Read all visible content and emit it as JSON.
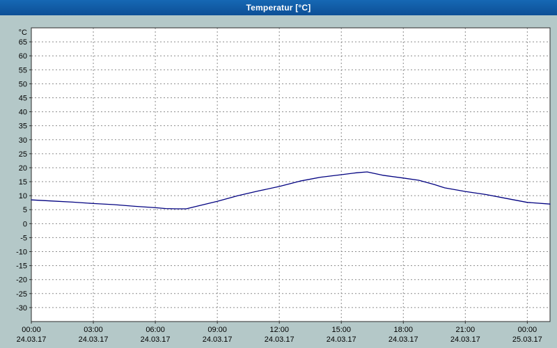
{
  "window": {
    "title": "Temperatur [°C]"
  },
  "colors": {
    "titlebar": "#0e5aa7",
    "titlebar_text": "#ffffff",
    "window_background": "#b4c8c8",
    "plot_background": "#ffffff",
    "grid": "#8a8a8a",
    "axis_border": "#2b2b2b",
    "line": "#000080",
    "text": "#000000"
  },
  "chart_data": {
    "type": "line",
    "title": "Temperatur [°C]",
    "ylabel": "°C",
    "ylim": [
      -35,
      70
    ],
    "xlim_hours": [
      0,
      25.1
    ],
    "grid": true,
    "legend": "none",
    "y_ticks": [
      65,
      60,
      55,
      50,
      45,
      40,
      35,
      30,
      25,
      20,
      15,
      10,
      5,
      0,
      -5,
      -10,
      -15,
      -20,
      -25,
      -30
    ],
    "x_ticks": [
      {
        "hour": 0,
        "time": "00:00",
        "date": "24.03.17"
      },
      {
        "hour": 3,
        "time": "03:00",
        "date": "24.03.17"
      },
      {
        "hour": 6,
        "time": "06:00",
        "date": "24.03.17"
      },
      {
        "hour": 9,
        "time": "09:00",
        "date": "24.03.17"
      },
      {
        "hour": 12,
        "time": "12:00",
        "date": "24.03.17"
      },
      {
        "hour": 15,
        "time": "15:00",
        "date": "24.03.17"
      },
      {
        "hour": 18,
        "time": "18:00",
        "date": "24.03.17"
      },
      {
        "hour": 21,
        "time": "21:00",
        "date": "24.03.17"
      },
      {
        "hour": 24,
        "time": "00:00",
        "date": "25.03.17"
      }
    ],
    "series": [
      {
        "name": "Temperatur",
        "color": "#000080",
        "x_hours": [
          0,
          1,
          2,
          3,
          4,
          5,
          6,
          6.5,
          7,
          7.5,
          8,
          9,
          10,
          11,
          12,
          13,
          14,
          15,
          15.75,
          16.25,
          17,
          18,
          18.75,
          19.5,
          20,
          21,
          22,
          23,
          24,
          25.1
        ],
        "y_values": [
          8.5,
          8.1,
          7.7,
          7.2,
          6.8,
          6.2,
          5.7,
          5.4,
          5.3,
          5.3,
          6.2,
          8.0,
          10.0,
          11.7,
          13.3,
          15.2,
          16.6,
          17.5,
          18.2,
          18.5,
          17.3,
          16.3,
          15.5,
          14.0,
          12.8,
          11.5,
          10.4,
          9.0,
          7.6,
          7.0
        ]
      }
    ]
  }
}
